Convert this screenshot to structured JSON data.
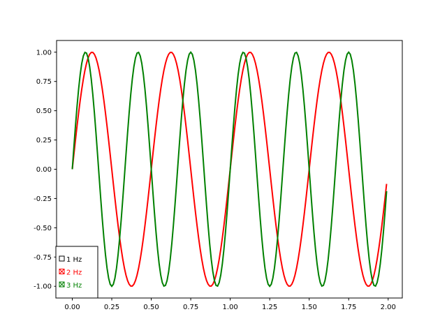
{
  "chart_data": {
    "type": "line",
    "xlim": [
      -0.0995,
      2.0895
    ],
    "ylim": [
      -1.1,
      1.1
    ],
    "x_ticks": [
      "0.00",
      "0.25",
      "0.50",
      "0.75",
      "1.00",
      "1.25",
      "1.50",
      "1.75",
      "2.00"
    ],
    "y_ticks": [
      "-1.00",
      "-0.75",
      "-0.50",
      "-0.25",
      "0.00",
      "0.25",
      "0.50",
      "0.75",
      "1.00"
    ],
    "x": {
      "start": 0,
      "stop": 1.99,
      "step": 0.01
    },
    "grid": false,
    "series": [
      {
        "name": "1 Hz",
        "function": "sin(2*pi*1*t)",
        "color": "#000000",
        "visible": false
      },
      {
        "name": "2 Hz",
        "function": "sin(2*pi*2*t)",
        "color": "#ff0000",
        "visible": true
      },
      {
        "name": "3 Hz",
        "function": "sin(2*pi*3*t)",
        "color": "#008000",
        "visible": true
      }
    ],
    "legend_placement": "bottom-left"
  },
  "check_buttons": [
    {
      "label": "1 Hz",
      "checked": false,
      "color": "#000000"
    },
    {
      "label": "2 Hz",
      "checked": true,
      "color": "#ff0000"
    },
    {
      "label": "3 Hz",
      "checked": true,
      "color": "#008000"
    }
  ]
}
